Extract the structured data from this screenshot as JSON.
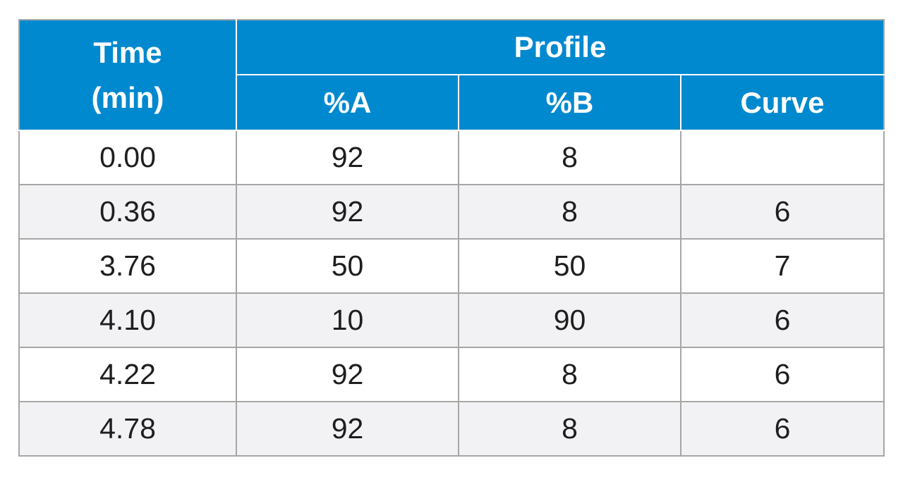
{
  "header": {
    "time_line1": "Time",
    "time_line2": "(min)",
    "profile": "Profile",
    "col_a": "%A",
    "col_b": "%B",
    "col_curve": "Curve"
  },
  "rows": [
    {
      "time": "0.00",
      "a": "92",
      "b": "8",
      "curve": ""
    },
    {
      "time": "0.36",
      "a": "92",
      "b": "8",
      "curve": "6"
    },
    {
      "time": "3.76",
      "a": "50",
      "b": "50",
      "curve": "7"
    },
    {
      "time": "4.10",
      "a": "10",
      "b": "90",
      "curve": "6"
    },
    {
      "time": "4.22",
      "a": "92",
      "b": "8",
      "curve": "6"
    },
    {
      "time": "4.78",
      "a": "92",
      "b": "8",
      "curve": "6"
    }
  ],
  "colors": {
    "header_bg": "#0089cf",
    "alt_row_bg": "#f2f2f4",
    "border": "#a6a6a6"
  }
}
